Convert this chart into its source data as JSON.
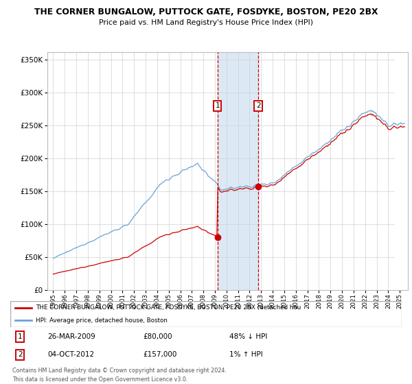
{
  "title": "THE CORNER BUNGALOW, PUTTOCK GATE, FOSDYKE, BOSTON, PE20 2BX",
  "subtitle": "Price paid vs. HM Land Registry's House Price Index (HPI)",
  "yticks": [
    0,
    50000,
    100000,
    150000,
    200000,
    250000,
    300000,
    350000
  ],
  "sale1_date": "26-MAR-2009",
  "sale1_price": 80000,
  "sale1_pct": "48% ↓ HPI",
  "sale1_x": 2009.23,
  "sale2_date": "04-OCT-2012",
  "sale2_price": 157000,
  "sale2_pct": "1% ↑ HPI",
  "sale2_x": 2012.75,
  "hpi_color": "#6aa3d5",
  "price_color": "#cc0000",
  "shade_color": "#dce9f5",
  "legend_label_red": "THE CORNER BUNGALOW, PUTTOCK GATE, FOSDYKE, BOSTON, PE20 2BX (detached hou",
  "legend_label_blue": "HPI: Average price, detached house, Boston",
  "footer1": "Contains HM Land Registry data © Crown copyright and database right 2024.",
  "footer2": "This data is licensed under the Open Government Licence v3.0."
}
